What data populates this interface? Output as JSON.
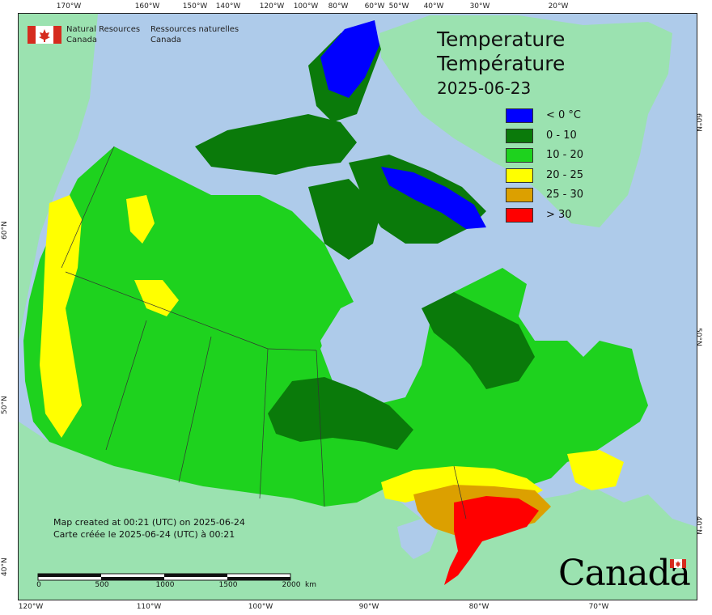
{
  "agency": {
    "name_en_line1": "Natural Resources",
    "name_en_line2": "Canada",
    "name_fr_line1": "Ressources naturelles",
    "name_fr_line2": "Canada"
  },
  "title": {
    "en": "Temperature",
    "fr": "Température",
    "date": "2025-06-23"
  },
  "legend": [
    {
      "label": "< 0 °C",
      "color": "#0000ff"
    },
    {
      "label": "0 - 10",
      "color": "#0a7a0a"
    },
    {
      "label": "10 - 20",
      "color": "#1ed21e"
    },
    {
      "label": "20 - 25",
      "color": "#ffff00"
    },
    {
      "label": "25 - 30",
      "color": "#dca000"
    },
    {
      "label": "> 30",
      "color": "#ff0000"
    }
  ],
  "credit": {
    "en": "Map created at 00:21 (UTC) on 2025-06-24",
    "fr": "Carte créée le 2025-06-24 (UTC) à 00:21"
  },
  "scale": {
    "ticks": [
      "0",
      "500",
      "1000",
      "1500",
      "2000"
    ],
    "unit": "km"
  },
  "graticule": {
    "top": [
      "170°W",
      "160°W",
      "150°W",
      "140°W",
      "120°W",
      "100°W",
      "80°W",
      "60°W",
      "50°W",
      "40°W",
      "30°W",
      "20°W"
    ],
    "bottom": [
      "120°W",
      "110°W",
      "100°W",
      "90°W",
      "80°W",
      "70°W"
    ],
    "left": [
      "60°N",
      "50°N",
      "40°N"
    ],
    "right": [
      "60°N",
      "50°N",
      "40°N"
    ]
  },
  "wordmark": "Canada",
  "colors": {
    "ocean": "#aecbea",
    "foreign_land": "#9be2b0",
    "cold": "#0000ff",
    "cool": "#0a7a0a",
    "mild": "#1ed21e",
    "warm": "#ffff00",
    "hot": "#dca000",
    "very_hot": "#ff0000",
    "flag_red": "#d52b1e"
  }
}
